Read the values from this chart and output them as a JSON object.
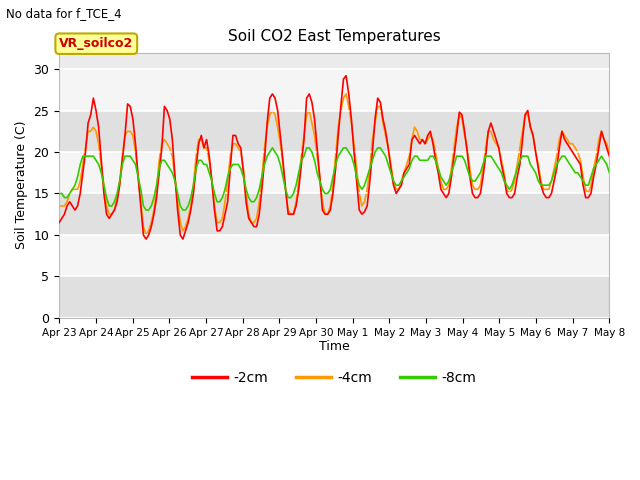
{
  "title": "Soil CO2 East Temperatures",
  "ylabel": "Soil Temperature (C)",
  "xlabel": "Time",
  "note": "No data for f_TCE_4",
  "legend_label": "VR_soilco2",
  "ylim": [
    0,
    32
  ],
  "yticks": [
    0,
    5,
    10,
    15,
    20,
    25,
    30
  ],
  "series_labels": [
    "-2cm",
    "-4cm",
    "-8cm"
  ],
  "series_colors": [
    "#ff0000",
    "#ff9900",
    "#33cc00"
  ],
  "line_width": 1.2,
  "xtick_labels": [
    "Apr 23",
    "Apr 24",
    "Apr 25",
    "Apr 26",
    "Apr 27",
    "Apr 28",
    "Apr 29",
    "Apr 30",
    "May 1",
    "May 2",
    "May 3",
    "May 4",
    "May 5",
    "May 6",
    "May 7",
    "May 8"
  ],
  "series_2cm": [
    11.5,
    12.0,
    12.5,
    13.5,
    14.0,
    13.5,
    13.0,
    13.5,
    15.0,
    17.5,
    20.0,
    23.5,
    24.5,
    26.5,
    25.0,
    23.0,
    19.0,
    15.0,
    12.5,
    12.0,
    12.5,
    13.0,
    14.0,
    16.0,
    19.0,
    22.0,
    25.8,
    25.5,
    24.0,
    21.0,
    17.0,
    13.5,
    10.0,
    9.5,
    10.0,
    11.0,
    12.5,
    14.5,
    17.5,
    20.5,
    25.5,
    25.0,
    24.0,
    21.5,
    17.0,
    13.0,
    10.0,
    9.5,
    10.5,
    11.5,
    13.0,
    15.0,
    18.0,
    21.0,
    22.0,
    20.5,
    21.5,
    19.5,
    16.5,
    13.0,
    10.5,
    10.5,
    11.0,
    12.5,
    14.0,
    18.0,
    22.0,
    22.0,
    21.0,
    20.5,
    17.5,
    14.0,
    12.0,
    11.5,
    11.0,
    11.0,
    12.5,
    15.5,
    19.0,
    23.5,
    26.5,
    27.0,
    26.5,
    25.0,
    22.0,
    19.0,
    15.5,
    12.5,
    12.5,
    12.5,
    13.5,
    15.5,
    18.5,
    21.5,
    26.5,
    27.0,
    26.0,
    24.0,
    20.5,
    17.0,
    13.0,
    12.5,
    12.5,
    13.0,
    15.0,
    18.0,
    22.0,
    25.5,
    28.8,
    29.2,
    27.0,
    24.0,
    20.0,
    16.5,
    13.0,
    12.5,
    12.8,
    13.5,
    16.5,
    20.0,
    24.0,
    26.5,
    26.0,
    24.0,
    22.5,
    20.5,
    18.0,
    16.0,
    15.0,
    15.5,
    16.0,
    17.5,
    18.0,
    18.5,
    21.5,
    22.0,
    21.5,
    21.0,
    21.5,
    21.0,
    22.0,
    22.5,
    21.0,
    19.0,
    17.5,
    15.5,
    15.0,
    14.5,
    15.0,
    17.0,
    19.5,
    22.0,
    24.8,
    24.5,
    22.5,
    20.0,
    17.0,
    15.0,
    14.5,
    14.5,
    15.0,
    17.0,
    19.5,
    22.5,
    23.5,
    22.5,
    21.5,
    20.5,
    18.5,
    17.0,
    15.0,
    14.5,
    14.5,
    15.0,
    17.0,
    18.5,
    21.5,
    24.5,
    25.0,
    23.0,
    22.0,
    20.0,
    18.0,
    16.0,
    15.0,
    14.5,
    14.5,
    15.0,
    16.5,
    18.0,
    20.5,
    22.5,
    21.5,
    21.0,
    20.5,
    20.0,
    19.5,
    19.0,
    18.5,
    16.0,
    14.5,
    14.5,
    15.0,
    17.0,
    18.5,
    20.5,
    22.5,
    21.5,
    20.5,
    19.5
  ],
  "series_4cm": [
    13.5,
    13.5,
    13.5,
    14.0,
    15.0,
    15.5,
    15.5,
    15.5,
    16.5,
    18.5,
    20.5,
    22.5,
    22.5,
    23.0,
    22.5,
    21.0,
    18.5,
    16.0,
    13.5,
    12.5,
    12.5,
    13.0,
    14.5,
    16.5,
    19.5,
    22.0,
    22.5,
    22.5,
    22.0,
    20.0,
    17.0,
    14.0,
    11.0,
    10.0,
    10.5,
    11.5,
    13.0,
    15.5,
    19.0,
    21.0,
    21.5,
    21.0,
    20.5,
    19.5,
    17.0,
    14.0,
    11.5,
    10.5,
    11.0,
    12.0,
    13.5,
    16.0,
    19.5,
    21.5,
    21.5,
    20.5,
    20.5,
    19.0,
    16.5,
    13.5,
    11.5,
    11.5,
    12.0,
    14.0,
    16.5,
    19.5,
    21.0,
    21.0,
    20.5,
    20.0,
    18.0,
    15.0,
    12.5,
    11.5,
    11.5,
    12.0,
    14.0,
    17.0,
    20.5,
    23.0,
    24.5,
    25.0,
    24.5,
    23.0,
    21.0,
    18.5,
    15.5,
    13.0,
    12.5,
    12.5,
    14.0,
    16.5,
    19.5,
    22.0,
    24.5,
    25.0,
    23.5,
    22.0,
    19.5,
    17.0,
    14.0,
    12.5,
    12.5,
    13.5,
    16.0,
    19.5,
    23.0,
    25.0,
    26.5,
    27.0,
    25.5,
    23.5,
    21.0,
    18.0,
    15.0,
    13.5,
    14.0,
    15.5,
    18.0,
    21.5,
    23.5,
    25.5,
    25.5,
    23.5,
    22.0,
    20.5,
    18.5,
    16.5,
    15.5,
    15.5,
    16.5,
    17.5,
    18.5,
    19.5,
    21.5,
    23.0,
    22.5,
    21.5,
    21.5,
    21.0,
    21.5,
    22.0,
    21.5,
    20.0,
    18.0,
    16.5,
    15.5,
    15.5,
    16.0,
    18.0,
    20.5,
    23.0,
    24.5,
    24.0,
    22.0,
    20.5,
    18.0,
    16.0,
    15.5,
    15.5,
    16.0,
    18.0,
    20.5,
    22.5,
    22.5,
    21.5,
    21.0,
    20.5,
    19.0,
    17.5,
    15.5,
    15.0,
    15.5,
    16.5,
    18.5,
    20.5,
    22.5,
    24.5,
    24.5,
    23.0,
    22.0,
    20.0,
    18.5,
    16.5,
    15.5,
    15.5,
    15.5,
    16.5,
    18.0,
    19.5,
    21.5,
    22.5,
    22.0,
    21.5,
    21.0,
    21.0,
    20.5,
    20.0,
    19.0,
    17.0,
    15.5,
    15.0,
    16.0,
    18.0,
    19.5,
    21.5,
    22.5,
    21.5,
    21.0,
    20.0
  ],
  "series_8cm": [
    15.0,
    15.0,
    14.5,
    14.5,
    15.0,
    15.5,
    16.0,
    17.0,
    18.5,
    19.5,
    19.5,
    19.5,
    19.5,
    19.5,
    19.0,
    18.5,
    17.5,
    16.0,
    14.5,
    13.5,
    13.5,
    14.0,
    15.0,
    16.5,
    18.5,
    19.5,
    19.5,
    19.5,
    19.0,
    18.5,
    17.0,
    15.5,
    13.5,
    13.0,
    13.0,
    13.5,
    14.5,
    16.0,
    18.0,
    19.0,
    19.0,
    18.5,
    18.0,
    17.5,
    16.5,
    15.0,
    13.5,
    13.0,
    13.0,
    13.5,
    14.5,
    16.0,
    18.0,
    19.0,
    19.0,
    18.5,
    18.5,
    17.5,
    16.5,
    15.0,
    14.0,
    14.0,
    14.5,
    15.5,
    17.0,
    18.0,
    18.5,
    18.5,
    18.5,
    18.0,
    17.0,
    15.5,
    14.5,
    14.0,
    14.0,
    14.5,
    15.5,
    17.0,
    18.5,
    19.5,
    20.0,
    20.5,
    20.0,
    19.5,
    18.5,
    17.0,
    15.5,
    14.5,
    14.5,
    15.0,
    16.0,
    17.5,
    19.0,
    19.5,
    20.5,
    20.5,
    20.0,
    19.0,
    17.5,
    16.5,
    15.5,
    15.0,
    15.0,
    15.5,
    17.0,
    18.5,
    19.5,
    20.0,
    20.5,
    20.5,
    20.0,
    19.5,
    18.5,
    17.0,
    16.0,
    15.5,
    16.0,
    17.0,
    18.0,
    19.0,
    20.0,
    20.5,
    20.5,
    20.0,
    19.5,
    18.5,
    17.5,
    16.5,
    16.0,
    16.0,
    16.5,
    17.0,
    17.5,
    18.0,
    19.0,
    19.5,
    19.5,
    19.0,
    19.0,
    19.0,
    19.0,
    19.5,
    19.5,
    19.0,
    18.0,
    17.0,
    16.5,
    16.0,
    16.5,
    17.5,
    18.5,
    19.5,
    19.5,
    19.5,
    19.0,
    18.0,
    17.0,
    16.5,
    16.5,
    17.0,
    17.5,
    18.5,
    19.5,
    19.5,
    19.5,
    19.0,
    18.5,
    18.0,
    17.5,
    16.5,
    16.0,
    15.5,
    16.0,
    17.0,
    18.0,
    19.0,
    19.5,
    19.5,
    19.5,
    18.5,
    18.0,
    17.5,
    16.5,
    16.0,
    16.0,
    16.0,
    16.0,
    16.5,
    17.5,
    18.5,
    19.0,
    19.5,
    19.5,
    19.0,
    18.5,
    18.0,
    17.5,
    17.5,
    17.0,
    16.5,
    16.0,
    16.0,
    17.0,
    18.0,
    18.5,
    19.0,
    19.5,
    19.0,
    18.5,
    17.5
  ]
}
